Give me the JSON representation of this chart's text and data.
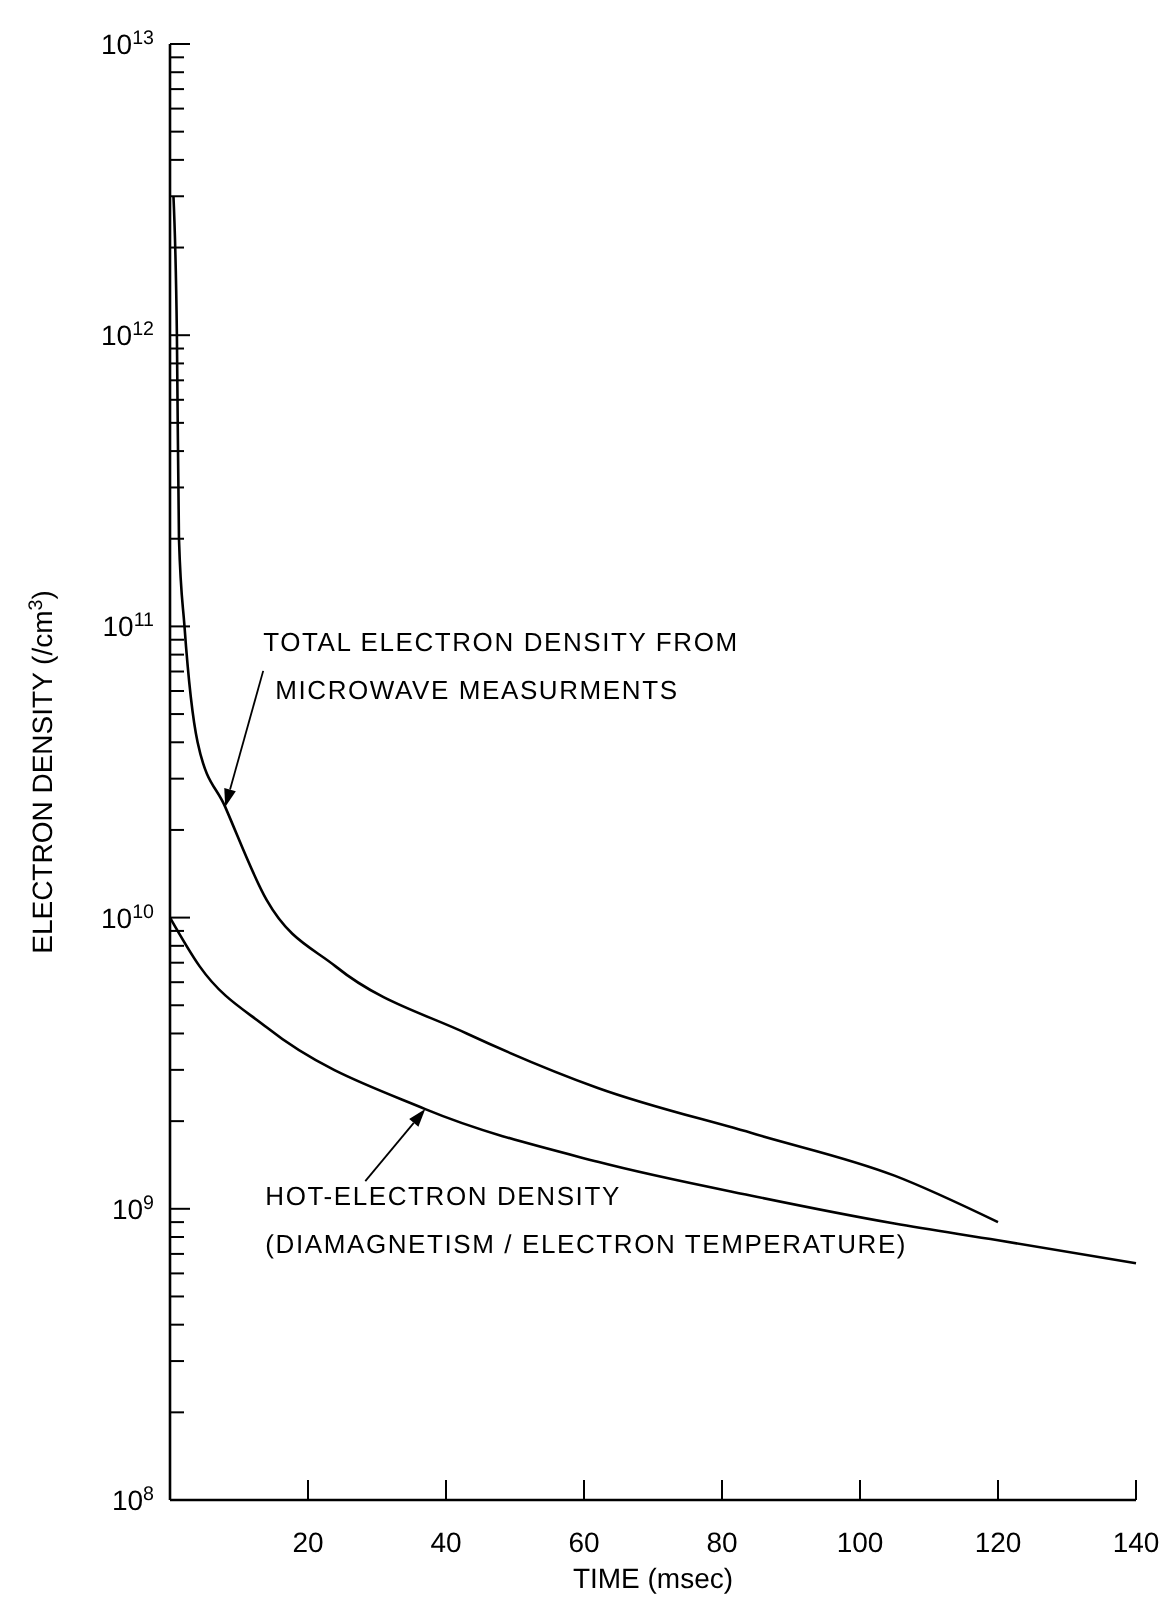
{
  "chart_data": {
    "type": "line",
    "xlabel": "TIME (msec)",
    "ylabel": "ELECTRON DENSITY (/cm$^{3}$)",
    "log": "y",
    "xlim": [
      0,
      140
    ],
    "xticks": [
      20,
      40,
      60,
      80,
      100,
      120,
      140
    ],
    "ylim": [
      100000000.0,
      10000000000000.0
    ],
    "yticks": [
      {
        "value": 100000000.0,
        "label": "10$^{8}$"
      },
      {
        "value": 200000000.0,
        "label": null
      },
      {
        "value": 300000000.0,
        "label": null
      },
      {
        "value": 400000000.0,
        "label": null
      },
      {
        "value": 500000000.0,
        "label": null
      },
      {
        "value": 600000000.0,
        "label": null
      },
      {
        "value": 700000000.0,
        "label": null
      },
      {
        "value": 800000000.0,
        "label": null
      },
      {
        "value": 900000000.0,
        "label": null
      },
      {
        "value": 1000000000.0,
        "label": "10$^{9}$"
      },
      {
        "value": 2000000000.0,
        "label": null
      },
      {
        "value": 3000000000.0,
        "label": null
      },
      {
        "value": 4000000000.0,
        "label": null
      },
      {
        "value": 5000000000.0,
        "label": null
      },
      {
        "value": 6000000000.0,
        "label": null
      },
      {
        "value": 7000000000.0,
        "label": null
      },
      {
        "value": 8000000000.0,
        "label": null
      },
      {
        "value": 9000000000.0,
        "label": null
      },
      {
        "value": 10000000000.0,
        "label": "10$^{10}$"
      },
      {
        "value": 20000000000.0,
        "label": null
      },
      {
        "value": 30000000000.0,
        "label": null
      },
      {
        "value": 40000000000.0,
        "label": null
      },
      {
        "value": 50000000000.0,
        "label": null
      },
      {
        "value": 60000000000.0,
        "label": null
      },
      {
        "value": 70000000000.0,
        "label": null
      },
      {
        "value": 80000000000.0,
        "label": null
      },
      {
        "value": 90000000000.0,
        "label": null
      },
      {
        "value": 100000000000.0,
        "label": "10$^{11}$"
      },
      {
        "value": 200000000000.0,
        "label": null
      },
      {
        "value": 300000000000.0,
        "label": null
      },
      {
        "value": 400000000000.0,
        "label": null
      },
      {
        "value": 500000000000.0,
        "label": null
      },
      {
        "value": 600000000000.0,
        "label": null
      },
      {
        "value": 700000000000.0,
        "label": null
      },
      {
        "value": 800000000000.0,
        "label": null
      },
      {
        "value": 900000000000.0,
        "label": null
      },
      {
        "value": 1000000000000.0,
        "label": "10$^{12}$"
      },
      {
        "value": 2000000000000.0,
        "label": null
      },
      {
        "value": 3000000000000.0,
        "label": null
      },
      {
        "value": 4000000000000.0,
        "label": null
      },
      {
        "value": 5000000000000.0,
        "label": null
      },
      {
        "value": 6000000000000.0,
        "label": null
      },
      {
        "value": 7000000000000.0,
        "label": null
      },
      {
        "value": 8000000000000.0,
        "label": null
      },
      {
        "value": 9000000000000.0,
        "label": null
      },
      {
        "value": 10000000000000.0,
        "label": "10$^{13}$"
      }
    ],
    "grid": false,
    "marker": "none",
    "line_style": "solid",
    "series": [
      {
        "color": "#000000",
        "x": [
          0.5,
          1,
          1.3,
          2.1,
          4,
          8,
          14,
          24,
          43,
          62,
          85,
          105,
          120
        ],
        "values": [
          3000000000000.0,
          1000000000000.0,
          200000000000.0,
          100000000000.0,
          40000000000.0,
          24000000000.0,
          11500000000.0,
          6800000000.0,
          4000000000.0,
          2600000000.0,
          1800000000.0,
          1300000000.0,
          900000000.0
        ]
      },
      {
        "color": "#000000",
        "x": [
          0,
          4.3,
          14,
          37,
          62,
          85,
          105,
          120,
          140
        ],
        "values": [
          10000000000.0,
          6800000000.0,
          4200000000.0,
          2200000000.0,
          1450000000.0,
          1100000000.0,
          890000000.0,
          780000000.0,
          650000000.0
        ]
      }
    ],
    "annotations": [
      {
        "text": "TOTAL ELECTRON DENSITY FROM\nMICROWAVE MEASURMENTS",
        "x": 8,
        "y": 24000000000.0
      },
      {
        "text": "HOT-ELECTRON DENSITY\n(DIAMAGNETISM / ELECTRON TEMPERATURE)",
        "x": 37,
        "y": 2200000000.0
      }
    ]
  }
}
